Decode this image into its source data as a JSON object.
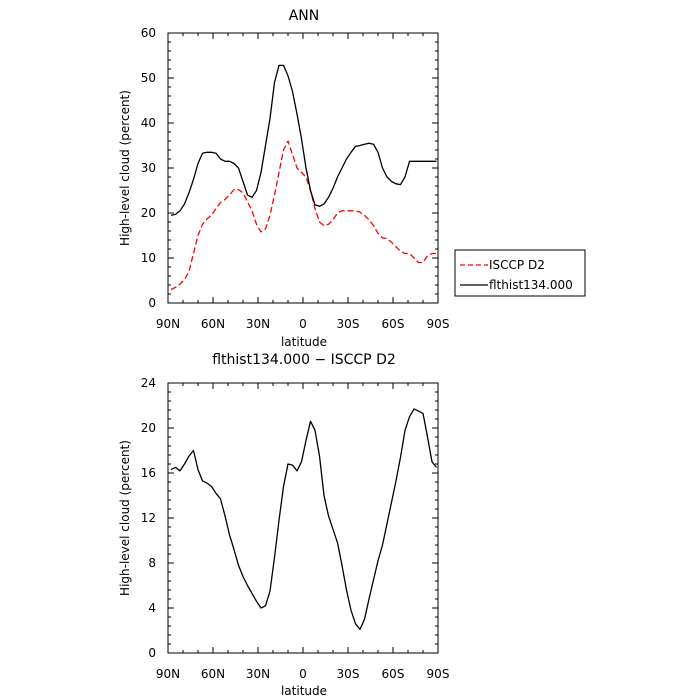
{
  "chart_data": [
    {
      "type": "line",
      "title": "ANN",
      "xlabel": "latitude",
      "ylabel": "High-level cloud (percent)",
      "xlim": [
        -90,
        90
      ],
      "ylim": [
        0,
        60
      ],
      "x_ticks": [
        {
          "value": -90,
          "label": "90N"
        },
        {
          "value": -60,
          "label": "60N"
        },
        {
          "value": -30,
          "label": "30N"
        },
        {
          "value": 0,
          "label": "0"
        },
        {
          "value": 30,
          "label": "30S"
        },
        {
          "value": 60,
          "label": "60S"
        },
        {
          "value": 90,
          "label": "90S"
        }
      ],
      "y_ticks": [
        0,
        10,
        20,
        30,
        40,
        50,
        60
      ],
      "legend_placement": "right",
      "series": [
        {
          "name": "ISCCP D2",
          "color": "#ff0000",
          "dash": true,
          "x": [
            -88,
            -85,
            -82,
            -79,
            -76,
            -73,
            -70,
            -67,
            -64,
            -61,
            -58,
            -55,
            -52,
            -49,
            -46,
            -43,
            -40,
            -37,
            -34,
            -31,
            -28,
            -25,
            -22,
            -19,
            -16,
            -13,
            -10,
            -7,
            -4,
            -1,
            2,
            5,
            8,
            11,
            14,
            17,
            20,
            23,
            26,
            29,
            32,
            35,
            38,
            41,
            44,
            47,
            50,
            53,
            56,
            59,
            62,
            65,
            68,
            71,
            74,
            77,
            80,
            83,
            86,
            89
          ],
          "values": [
            3,
            3.5,
            4.2,
            5.2,
            7,
            11,
            15,
            17.5,
            18.7,
            19.5,
            21,
            22.3,
            23,
            24,
            25.2,
            25.2,
            24.5,
            22.5,
            20.5,
            17.5,
            15.8,
            16.5,
            19.5,
            24,
            29,
            34,
            36,
            33,
            30,
            29,
            28,
            25,
            21,
            18,
            17.2,
            17.5,
            18.5,
            20,
            20.5,
            20.5,
            20.5,
            20.5,
            20.2,
            19.5,
            18.5,
            17.2,
            15.5,
            14.5,
            14.3,
            13.5,
            12.5,
            11.5,
            11,
            11,
            10,
            9,
            9,
            10.5,
            11,
            11
          ]
        },
        {
          "name": "flthist134.000",
          "color": "#000000",
          "dash": false,
          "x": [
            -88,
            -85,
            -82,
            -79,
            -76,
            -73,
            -70,
            -67,
            -64,
            -61,
            -58,
            -55,
            -52,
            -49,
            -46,
            -43,
            -40,
            -37,
            -34,
            -31,
            -28,
            -25,
            -22,
            -19,
            -16,
            -13,
            -10,
            -7,
            -4,
            -1,
            2,
            5,
            8,
            11,
            14,
            17,
            20,
            23,
            26,
            29,
            32,
            35,
            38,
            41,
            44,
            47,
            50,
            53,
            56,
            59,
            62,
            65,
            68,
            71,
            74,
            77,
            80,
            83,
            86,
            89
          ],
          "values": [
            19.5,
            19.7,
            20.5,
            22,
            24.5,
            27.5,
            31,
            33.3,
            33.5,
            33.5,
            33.3,
            32,
            31.5,
            31.5,
            31,
            30,
            27,
            24,
            23.5,
            25,
            29,
            35,
            41,
            49,
            52.8,
            52.8,
            50.5,
            47,
            42,
            36.5,
            30,
            25,
            21.8,
            21.5,
            22,
            23.5,
            25.5,
            28,
            30,
            32,
            33.5,
            34.8,
            35,
            35.3,
            35.5,
            35.3,
            33.5,
            30,
            28,
            27,
            26.5,
            26.3,
            28,
            31.5,
            31.5,
            31.5,
            31.5,
            31.5,
            31.5,
            31.5
          ]
        }
      ]
    },
    {
      "type": "line",
      "title": "flthist134.000 − ISCCP D2",
      "xlabel": "latitude",
      "ylabel": "High-level cloud (percent)",
      "xlim": [
        -90,
        90
      ],
      "ylim": [
        0,
        24
      ],
      "x_ticks": [
        {
          "value": -90,
          "label": "90N"
        },
        {
          "value": -60,
          "label": "60N"
        },
        {
          "value": -30,
          "label": "30N"
        },
        {
          "value": 0,
          "label": "0"
        },
        {
          "value": 30,
          "label": "30S"
        },
        {
          "value": 60,
          "label": "60S"
        },
        {
          "value": 90,
          "label": "90S"
        }
      ],
      "y_ticks": [
        0,
        4,
        8,
        12,
        16,
        20,
        24
      ],
      "series": [
        {
          "color": "#000000",
          "x": [
            -88,
            -85,
            -82,
            -79,
            -76,
            -73,
            -70,
            -67,
            -64,
            -61,
            -58,
            -55,
            -52,
            -49,
            -46,
            -43,
            -40,
            -37,
            -34,
            -31,
            -28,
            -25,
            -22,
            -19,
            -16,
            -13,
            -10,
            -7,
            -4,
            -1,
            2,
            5,
            8,
            11,
            14,
            17,
            20,
            23,
            26,
            29,
            32,
            35,
            38,
            41,
            44,
            47,
            50,
            53,
            56,
            59,
            62,
            65,
            68,
            71,
            74,
            77,
            80,
            83,
            86,
            89
          ],
          "values": [
            16.3,
            16.5,
            16.2,
            16.8,
            17.5,
            18,
            16.3,
            15.3,
            15.1,
            14.8,
            14.2,
            13.7,
            12.2,
            10.5,
            9.2,
            7.8,
            6.8,
            6,
            5.3,
            4.6,
            4,
            4.2,
            5.5,
            8.5,
            11.8,
            14.8,
            16.8,
            16.7,
            16.2,
            17,
            18.9,
            20.6,
            19.8,
            17.5,
            14,
            12.2,
            11,
            9.8,
            7.8,
            5.6,
            3.8,
            2.6,
            2.1,
            3,
            4.8,
            6.5,
            8.2,
            9.6,
            11.5,
            13.4,
            15.3,
            17.4,
            19.8,
            21,
            21.7,
            21.5,
            21.3,
            19.2,
            17,
            16.5
          ]
        }
      ]
    }
  ],
  "legend": {
    "entries": [
      {
        "label": "ISCCP D2",
        "color": "#ff0000",
        "dash": true
      },
      {
        "label": "flthist134.000",
        "color": "#000000",
        "dash": false
      }
    ]
  }
}
